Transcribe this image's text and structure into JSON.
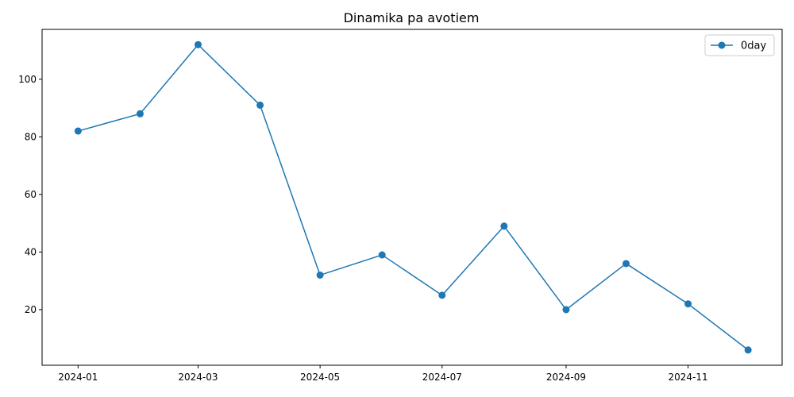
{
  "chart_data": {
    "type": "line",
    "title": "Dinamika pa avotiem",
    "xlabel": "",
    "ylabel": "",
    "x": [
      "2024-01-01",
      "2024-02-01",
      "2024-03-01",
      "2024-04-01",
      "2024-05-01",
      "2024-06-01",
      "2024-07-01",
      "2024-08-01",
      "2024-09-01",
      "2024-10-01",
      "2024-11-01",
      "2024-12-01"
    ],
    "x_ticks": [
      "2024-01",
      "2024-03",
      "2024-05",
      "2024-07",
      "2024-09",
      "2024-11"
    ],
    "x_tick_dates": [
      "2024-01-01",
      "2024-03-01",
      "2024-05-01",
      "2024-07-01",
      "2024-09-01",
      "2024-11-01"
    ],
    "xlim": [
      "2023-12-14",
      "2024-12-18"
    ],
    "y_ticks": [
      20,
      40,
      60,
      80,
      100
    ],
    "ylim": [
      0.7,
      117.3
    ],
    "grid": false,
    "legend_position": "top-right",
    "series": [
      {
        "name": "0day",
        "color": "#1f77b4",
        "marker": "circle",
        "values": [
          82,
          88,
          112,
          91,
          32,
          39,
          25,
          49,
          20,
          36,
          22,
          6
        ]
      }
    ]
  }
}
